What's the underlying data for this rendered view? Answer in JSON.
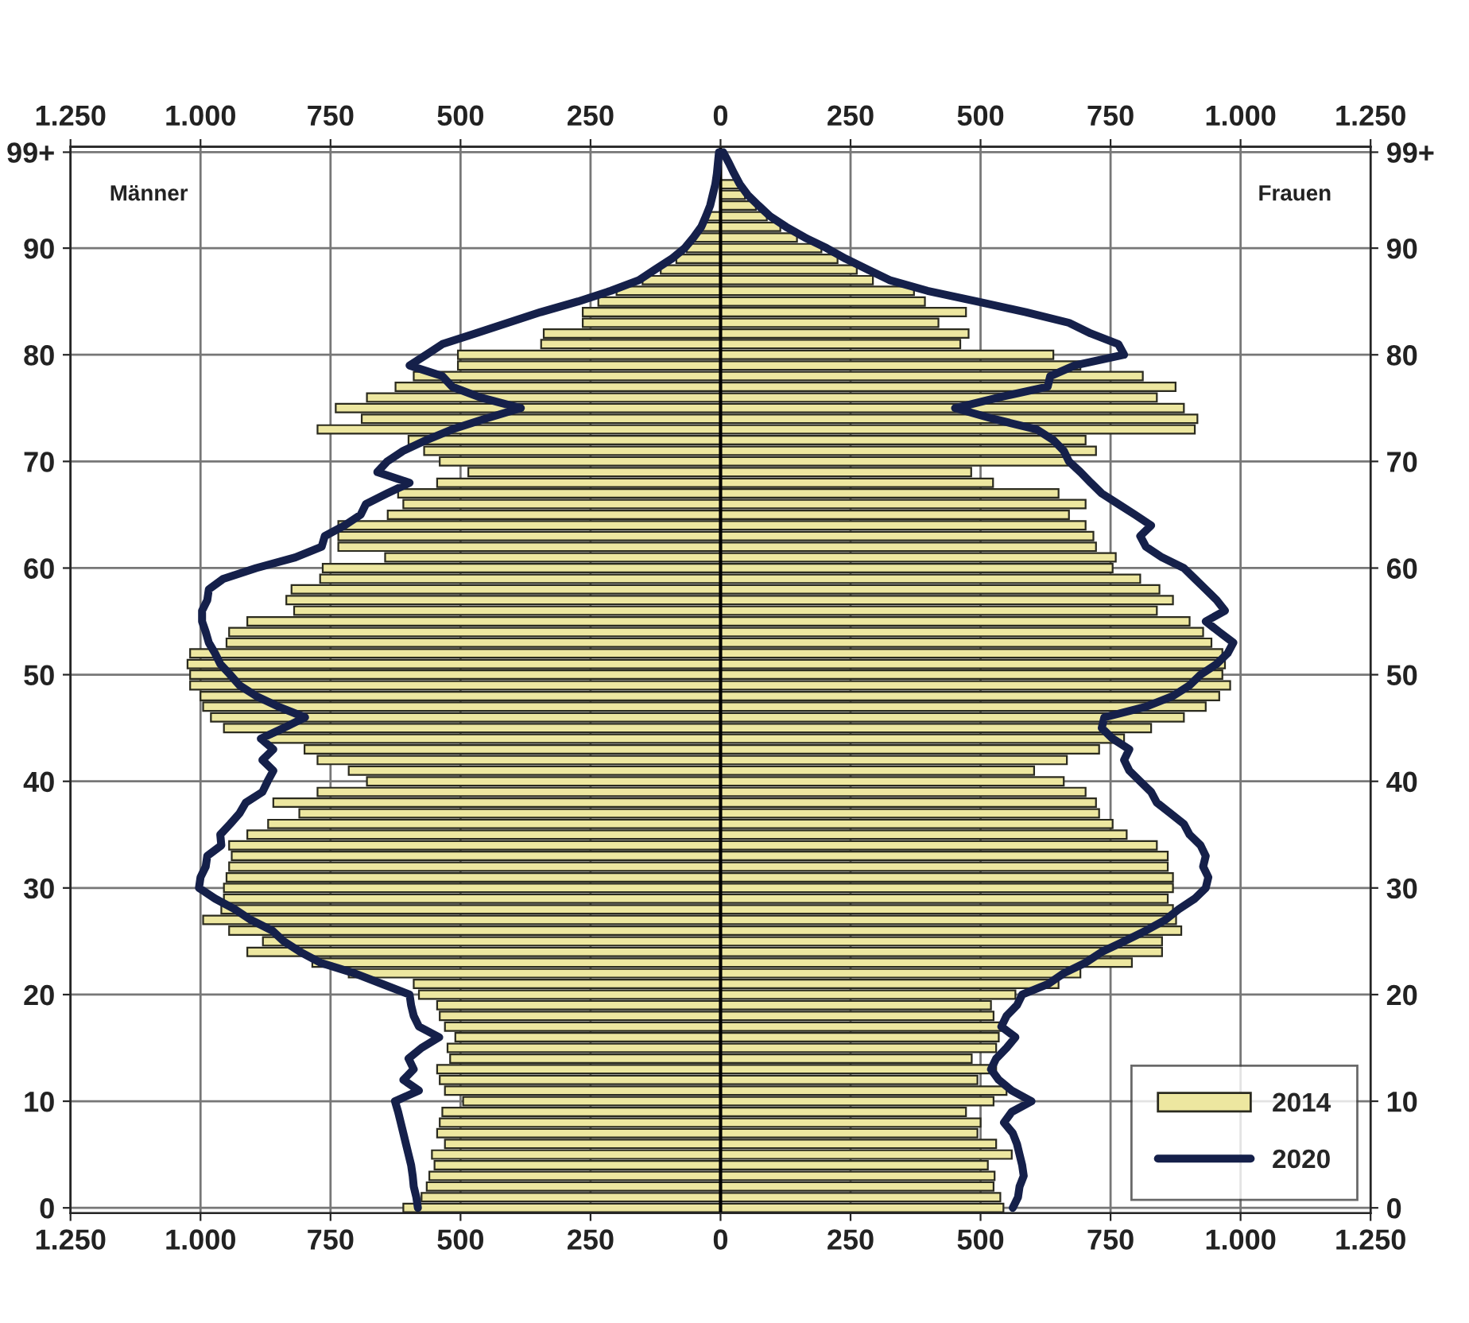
{
  "chart_data": {
    "type": "bar",
    "orientation": "horizontal",
    "categories": [
      "99+",
      null,
      null,
      null,
      null,
      null,
      null,
      null,
      null,
      "90",
      null,
      null,
      null,
      null,
      null,
      null,
      null,
      null,
      null,
      "80",
      null,
      null,
      null,
      null,
      null,
      null,
      null,
      null,
      null,
      "70",
      null,
      null,
      null,
      null,
      null,
      null,
      null,
      null,
      null,
      "60",
      null,
      null,
      null,
      null,
      null,
      null,
      null,
      null,
      null,
      "50",
      null,
      null,
      null,
      null,
      null,
      null,
      null,
      null,
      null,
      "40",
      null,
      null,
      null,
      null,
      null,
      null,
      null,
      null,
      null,
      "30",
      null,
      null,
      null,
      null,
      null,
      null,
      null,
      null,
      null,
      "20",
      null,
      null,
      null,
      null,
      null,
      null,
      null,
      null,
      null,
      "10",
      null,
      null,
      null,
      null,
      null,
      null,
      null,
      null,
      null,
      "0"
    ],
    "y2_categories": [
      "99+",
      null,
      null,
      null,
      null,
      null,
      null,
      null,
      null,
      "90",
      null,
      null,
      null,
      null,
      null,
      null,
      null,
      null,
      null,
      "80",
      null,
      null,
      null,
      null,
      null,
      null,
      null,
      null,
      null,
      "70",
      null,
      null,
      null,
      null,
      null,
      null,
      null,
      null,
      null,
      "60",
      null,
      null,
      null,
      null,
      null,
      null,
      null,
      null,
      null,
      "50",
      null,
      null,
      null,
      null,
      null,
      null,
      null,
      null,
      null,
      "40",
      null,
      null,
      null,
      null,
      null,
      null,
      null,
      null,
      null,
      "30",
      null,
      null,
      null,
      null,
      null,
      null,
      null,
      null,
      null,
      "20",
      null,
      null,
      null,
      null,
      null,
      null,
      null,
      null,
      null,
      "10",
      null,
      null,
      null,
      null,
      null,
      null,
      null,
      null,
      null,
      "0"
    ],
    "series": [
      {
        "color": "#ede7a0",
        "values": [
          null,
          null,
          null,
          null,
          null,
          null,
          -25,
          -35,
          -50,
          -65,
          -85,
          -115,
          -150,
          -200,
          -235,
          -265,
          -265,
          -340,
          -345,
          -505,
          -505,
          -590,
          -625,
          -680,
          -740,
          -690,
          -775,
          -600,
          -570,
          -540,
          -485,
          -545,
          -620,
          -610,
          -640,
          -735,
          -735,
          -735,
          -645,
          -765,
          -770,
          -825,
          -835,
          -820,
          -910,
          -945,
          -950,
          -1020,
          -1025,
          -1020,
          -1020,
          -1000,
          -995,
          -980,
          -955,
          -875,
          -800,
          -775,
          -715,
          -680,
          -775,
          -860,
          -810,
          -870,
          -910,
          -945,
          -940,
          -945,
          -950,
          -955,
          -955,
          -960,
          -995,
          -945,
          -880,
          -910,
          -785,
          -715,
          -590,
          -580,
          -545,
          -540,
          -530,
          -510,
          -525,
          -520,
          -545,
          -540,
          -530,
          -495,
          -535,
          -540,
          -545,
          -530,
          -555,
          -550,
          -560,
          -565,
          -575,
          -610
        ]
      },
      {
        "name": "2014",
        "color": "#ede7a0",
        "values": [
          null,
          null,
          null,
          37,
          47,
          68,
          89,
          115,
          147,
          194,
          225,
          262,
          293,
          372,
          393,
          472,
          419,
          477,
          461,
          640,
          692,
          812,
          875,
          839,
          891,
          917,
          912,
          702,
          722,
          670,
          482,
          524,
          650,
          702,
          670,
          702,
          717,
          722,
          760,
          754,
          807,
          844,
          870,
          839,
          902,
          928,
          944,
          965,
          970,
          965,
          980,
          959,
          933,
          891,
          828,
          776,
          728,
          666,
          603,
          660,
          702,
          722,
          728,
          754,
          781,
          839,
          860,
          860,
          870,
          870,
          860,
          870,
          876,
          886,
          849,
          849,
          791,
          692,
          650,
          567,
          520,
          525,
          540,
          535,
          530,
          483,
          530,
          494,
          550,
          525,
          472,
          500,
          494,
          530,
          560,
          514,
          527,
          525,
          538,
          544
        ]
      },
      {
        "type": "line",
        "color": "#15204a",
        "values": [
          -3,
          -5,
          -7,
          -10,
          -15,
          -20,
          -28,
          -37,
          -52,
          -69,
          -94,
          -126,
          -157,
          -211,
          -274,
          -346,
          -409,
          -472,
          -535,
          -566,
          -598,
          -535,
          -516,
          -462,
          -384,
          -453,
          -516,
          -566,
          -610,
          -641,
          -660,
          -598,
          -641,
          -682,
          -692,
          -723,
          -761,
          -767,
          -818,
          -893,
          -956,
          -984,
          -987,
          -997,
          -997,
          -990,
          -984,
          -972,
          -962,
          -943,
          -925,
          -893,
          -850,
          -799,
          -840,
          -884,
          -860,
          -881,
          -860,
          -871,
          -881,
          -913,
          -925,
          -943,
          -962,
          -960,
          -987,
          -990,
          -1000,
          -1003,
          -972,
          -934,
          -903,
          -862,
          -840,
          -808,
          -770,
          -704,
          -651,
          -598,
          -595,
          -590,
          -580,
          -541,
          -575,
          -600,
          -590,
          -610,
          -580,
          -626,
          -620,
          -615,
          -610,
          -605,
          -600,
          -595,
          -592,
          -590,
          -585,
          -582
        ]
      },
      {
        "type": "line",
        "name": "2020",
        "color": "#15204a",
        "values": [
          5,
          16,
          26,
          37,
          52,
          73,
          95,
          126,
          162,
          204,
          241,
          283,
          325,
          398,
          493,
          587,
          670,
          712,
          765,
          776,
          681,
          634,
          629,
          535,
          451,
          524,
          608,
          640,
          660,
          670,
          692,
          712,
          733,
          765,
          797,
          828,
          807,
          818,
          849,
          891,
          912,
          933,
          954,
          970,
          933,
          959,
          986,
          975,
          954,
          923,
          902,
          870,
          818,
          738,
          733,
          754,
          786,
          776,
          786,
          807,
          828,
          839,
          865,
          891,
          902,
          923,
          933,
          928,
          938,
          933,
          912,
          881,
          855,
          818,
          776,
          733,
          702,
          660,
          630,
          580,
          570,
          550,
          540,
          567,
          550,
          530,
          520,
          535,
          560,
          598,
          560,
          545,
          562,
          570,
          575,
          580,
          583,
          575,
          572,
          562
        ]
      }
    ],
    "xlim": [
      -1250,
      1250
    ],
    "xticks": [
      {
        "value": -1250,
        "label": "1.250"
      },
      {
        "value": -1000,
        "label": "1.000"
      },
      {
        "value": -750,
        "label": "750"
      },
      {
        "value": -500,
        "label": "500"
      },
      {
        "value": -250,
        "label": "250"
      },
      0,
      250,
      500,
      750,
      {
        "value": 1000,
        "label": "1.000"
      },
      {
        "value": 1250,
        "label": "1.250"
      }
    ],
    "x2lim": [
      -1250,
      1250
    ],
    "x2ticks": [
      {
        "value": -1250,
        "label": "1.250"
      },
      {
        "value": -1000,
        "label": "1.000"
      },
      {
        "value": -750,
        "label": "750"
      },
      {
        "value": -500,
        "label": "500"
      },
      {
        "value": -250,
        "label": "250"
      },
      0,
      250,
      500,
      750,
      {
        "value": 1000,
        "label": "1.000"
      },
      {
        "value": 1250,
        "label": "1.250"
      }
    ],
    "ref_lines": [
      {
        "axis": "x",
        "value": 0,
        "color": "#000000"
      }
    ],
    "annotations": [
      "Männer",
      "Frauen"
    ],
    "grid": true,
    "stacked": true,
    "legend": "bottom right"
  }
}
